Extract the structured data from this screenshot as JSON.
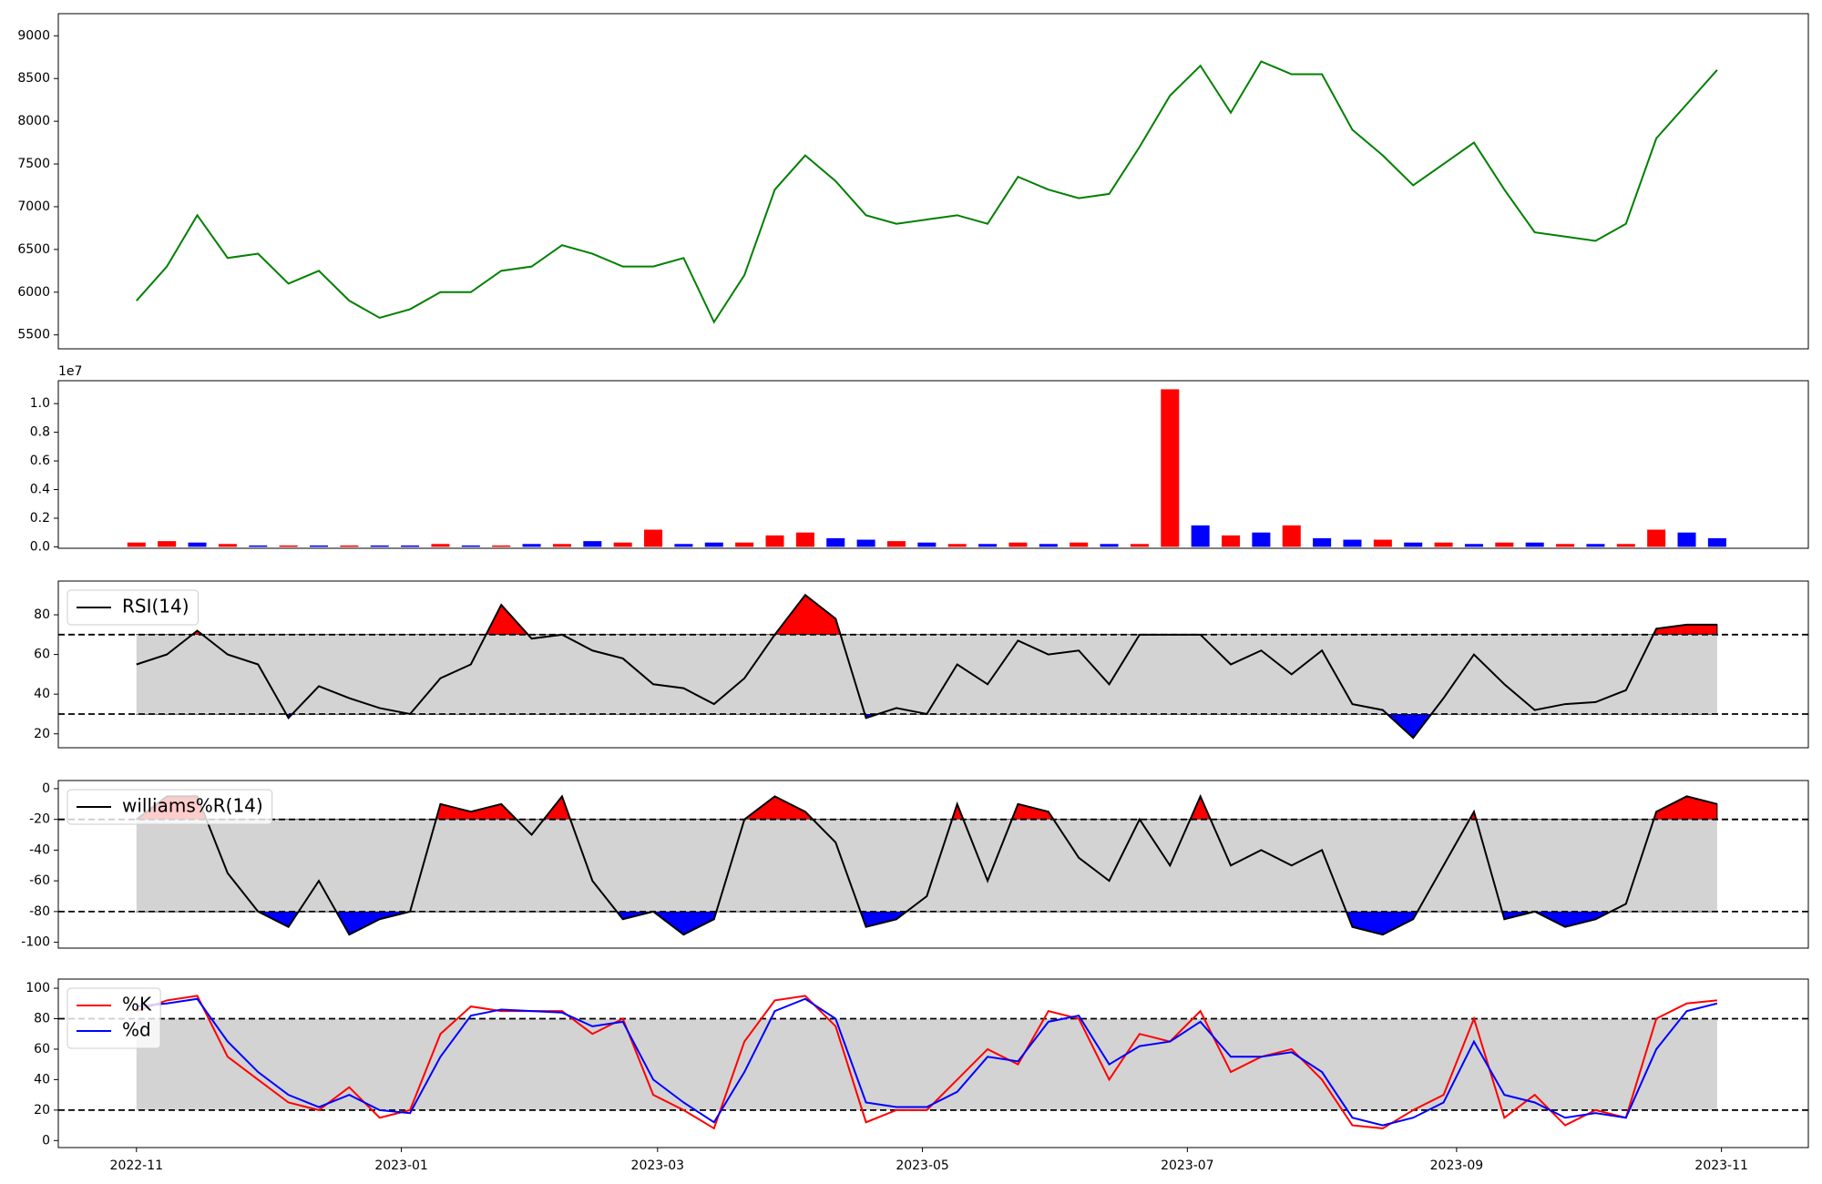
{
  "chart_data": [
    {
      "type": "line",
      "x": [
        0,
        7,
        14,
        21,
        28,
        35,
        42,
        49,
        56,
        63,
        70,
        77,
        84,
        91,
        98,
        105,
        112,
        119,
        126,
        133,
        140,
        147,
        154,
        161,
        168,
        175,
        182,
        189,
        196,
        203,
        210,
        217,
        224,
        231,
        238,
        245,
        252,
        259,
        266,
        273,
        280,
        287,
        294,
        301,
        308,
        315,
        322,
        329,
        336,
        343,
        350,
        357,
        364
      ],
      "series": [
        {
          "color": "green",
          "values": [
            5900,
            6300,
            6900,
            6400,
            6450,
            6100,
            6250,
            5900,
            5700,
            5800,
            6000,
            6000,
            6250,
            6300,
            6550,
            6450,
            6300,
            6300,
            6400,
            5650,
            6200,
            7200,
            7600,
            7300,
            6900,
            6800,
            6850,
            6900,
            6800,
            7350,
            7200,
            7100,
            7150,
            7700,
            8300,
            8650,
            8100,
            8700,
            8550,
            8550,
            7900,
            7600,
            7250,
            7500,
            7750,
            7200,
            6700,
            6650,
            6600,
            6800,
            7800,
            8200,
            8600
          ]
        }
      ],
      "xlim": [
        -18,
        385
      ],
      "ylim": [
        5337,
        9259
      ],
      "yticks": [
        5500,
        6000,
        6500,
        7000,
        7500,
        8000,
        8500,
        9000
      ]
    },
    {
      "type": "bar",
      "x": [
        0,
        7,
        14,
        21,
        28,
        35,
        42,
        49,
        56,
        63,
        70,
        77,
        84,
        91,
        98,
        105,
        112,
        119,
        126,
        133,
        140,
        147,
        154,
        161,
        168,
        175,
        182,
        189,
        196,
        203,
        210,
        217,
        224,
        231,
        238,
        245,
        252,
        259,
        266,
        273,
        280,
        287,
        294,
        301,
        308,
        315,
        322,
        329,
        336,
        343,
        350,
        357,
        364
      ],
      "values": [
        0.03,
        0.04,
        0.03,
        0.02,
        0.01,
        0.01,
        0.01,
        0.01,
        0.01,
        0.01,
        0.02,
        0.01,
        0.01,
        0.02,
        0.02,
        0.04,
        0.03,
        0.12,
        0.02,
        0.03,
        0.03,
        0.08,
        0.1,
        0.06,
        0.05,
        0.04,
        0.03,
        0.02,
        0.02,
        0.03,
        0.02,
        0.03,
        0.02,
        0.02,
        1.1,
        0.15,
        0.08,
        0.1,
        0.15,
        0.06,
        0.05,
        0.05,
        0.03,
        0.03,
        0.02,
        0.03,
        0.03,
        0.02,
        0.02,
        0.02,
        0.12,
        0.1,
        0.06
      ],
      "colors": [
        "red",
        "red",
        "blue",
        "red",
        "blue",
        "red",
        "blue",
        "red",
        "blue",
        "blue",
        "red",
        "blue",
        "red",
        "blue",
        "red",
        "blue",
        "red",
        "red",
        "blue",
        "blue",
        "red",
        "red",
        "red",
        "blue",
        "blue",
        "red",
        "blue",
        "red",
        "blue",
        "red",
        "blue",
        "red",
        "blue",
        "red",
        "red",
        "blue",
        "red",
        "blue",
        "red",
        "blue",
        "blue",
        "red",
        "blue",
        "red",
        "blue",
        "red",
        "blue",
        "red",
        "blue",
        "red",
        "red",
        "blue",
        "blue"
      ],
      "offset_label": "1e7",
      "xlim": [
        -18,
        385
      ],
      "ylim": [
        -0.01,
        1.16
      ],
      "yticks": [
        {
          "value": 0,
          "label": "0.0"
        },
        {
          "value": 0.2,
          "label": "0.2"
        },
        {
          "value": 0.4,
          "label": "0.4"
        },
        {
          "value": 0.6,
          "label": "0.6"
        },
        {
          "value": 0.8,
          "label": "0.8"
        },
        {
          "value": 1,
          "label": "1.0"
        }
      ]
    },
    {
      "type": "line",
      "x": [
        0,
        7,
        14,
        21,
        28,
        35,
        42,
        49,
        56,
        63,
        70,
        77,
        84,
        91,
        98,
        105,
        112,
        119,
        126,
        133,
        140,
        147,
        154,
        161,
        168,
        175,
        182,
        189,
        196,
        203,
        210,
        217,
        224,
        231,
        238,
        245,
        252,
        259,
        266,
        273,
        280,
        287,
        294,
        301,
        308,
        315,
        322,
        329,
        336,
        343,
        350,
        357,
        364
      ],
      "series": [
        {
          "name": "RSI(14)",
          "color": "black",
          "values": [
            55,
            60,
            72,
            60,
            55,
            28,
            44,
            38,
            33,
            30,
            48,
            55,
            85,
            68,
            70,
            62,
            58,
            45,
            43,
            35,
            48,
            70,
            90,
            78,
            28,
            33,
            30,
            55,
            45,
            67,
            60,
            62,
            45,
            70,
            70,
            70,
            55,
            62,
            50,
            62,
            35,
            32,
            18,
            38,
            60,
            45,
            32,
            35,
            36,
            42,
            73,
            75,
            75
          ]
        }
      ],
      "thresholds": [
        30,
        70
      ],
      "band_fill": "lightgray",
      "fill_above": "red",
      "fill_below": "blue",
      "legend": "upper left",
      "xlim": [
        -18,
        385
      ],
      "ylim": [
        13,
        97
      ],
      "yticks": [
        20,
        40,
        60,
        80
      ]
    },
    {
      "type": "line",
      "x": [
        0,
        7,
        14,
        21,
        28,
        35,
        42,
        49,
        56,
        63,
        70,
        77,
        84,
        91,
        98,
        105,
        112,
        119,
        126,
        133,
        140,
        147,
        154,
        161,
        168,
        175,
        182,
        189,
        196,
        203,
        210,
        217,
        224,
        231,
        238,
        245,
        252,
        259,
        266,
        273,
        280,
        287,
        294,
        301,
        308,
        315,
        322,
        329,
        336,
        343,
        350,
        357,
        364
      ],
      "series": [
        {
          "name": "williams%R(14)",
          "color": "black",
          "values": [
            -20,
            -5,
            -5,
            -55,
            -80,
            -90,
            -60,
            -95,
            -85,
            -80,
            -10,
            -15,
            -10,
            -30,
            -5,
            -60,
            -85,
            -80,
            -95,
            -85,
            -20,
            -5,
            -15,
            -35,
            -90,
            -85,
            -70,
            -10,
            -60,
            -10,
            -15,
            -45,
            -60,
            -20,
            -50,
            -5,
            -50,
            -40,
            -50,
            -40,
            -90,
            -95,
            -85,
            -50,
            -15,
            -85,
            -80,
            -90,
            -85,
            -75,
            -15,
            -5,
            -10
          ]
        }
      ],
      "thresholds": [
        -80,
        -20
      ],
      "band_fill": "lightgray",
      "fill_above": "red",
      "fill_below": "blue",
      "legend": "upper left",
      "xlim": [
        -18,
        385
      ],
      "ylim": [
        -103.8,
        5.3
      ],
      "yticks": [
        -100,
        -80,
        -60,
        -40,
        -20,
        0
      ]
    },
    {
      "type": "line",
      "x": [
        0,
        7,
        14,
        21,
        28,
        35,
        42,
        49,
        56,
        63,
        70,
        77,
        84,
        91,
        98,
        105,
        112,
        119,
        126,
        133,
        140,
        147,
        154,
        161,
        168,
        175,
        182,
        189,
        196,
        203,
        210,
        217,
        224,
        231,
        238,
        245,
        252,
        259,
        266,
        273,
        280,
        287,
        294,
        301,
        308,
        315,
        322,
        329,
        336,
        343,
        350,
        357,
        364
      ],
      "series": [
        {
          "name": "%K",
          "color": "red",
          "values": [
            85,
            92,
            95,
            55,
            40,
            25,
            20,
            35,
            15,
            20,
            70,
            88,
            85,
            85,
            85,
            70,
            80,
            30,
            20,
            8,
            65,
            92,
            95,
            75,
            12,
            20,
            20,
            40,
            60,
            50,
            85,
            80,
            40,
            70,
            65,
            85,
            45,
            55,
            60,
            40,
            10,
            8,
            20,
            30,
            80,
            15,
            30,
            10,
            20,
            15,
            80,
            90,
            92
          ]
        },
        {
          "name": "%d",
          "color": "blue",
          "values": [
            88,
            90,
            93,
            65,
            45,
            30,
            22,
            30,
            20,
            18,
            55,
            82,
            86,
            85,
            84,
            75,
            78,
            40,
            25,
            12,
            45,
            85,
            93,
            80,
            25,
            22,
            22,
            32,
            55,
            52,
            78,
            82,
            50,
            62,
            65,
            78,
            55,
            55,
            58,
            45,
            15,
            10,
            15,
            25,
            65,
            30,
            25,
            15,
            18,
            15,
            60,
            85,
            90
          ]
        }
      ],
      "thresholds": [
        20,
        80
      ],
      "band_fill": "lightgray",
      "legend": "upper left",
      "xlim": [
        -18,
        385
      ],
      "ylim": [
        -4.6,
        106
      ],
      "yticks": [
        0,
        20,
        40,
        60,
        80,
        100
      ],
      "xticks": [
        {
          "value": 0,
          "label": "2022-11"
        },
        {
          "value": 61,
          "label": "2023-01"
        },
        {
          "value": 120,
          "label": "2023-03"
        },
        {
          "value": 181,
          "label": "2023-05"
        },
        {
          "value": 242,
          "label": "2023-07"
        },
        {
          "value": 304,
          "label": "2023-09"
        },
        {
          "value": 365,
          "label": "2023-11"
        }
      ]
    }
  ]
}
